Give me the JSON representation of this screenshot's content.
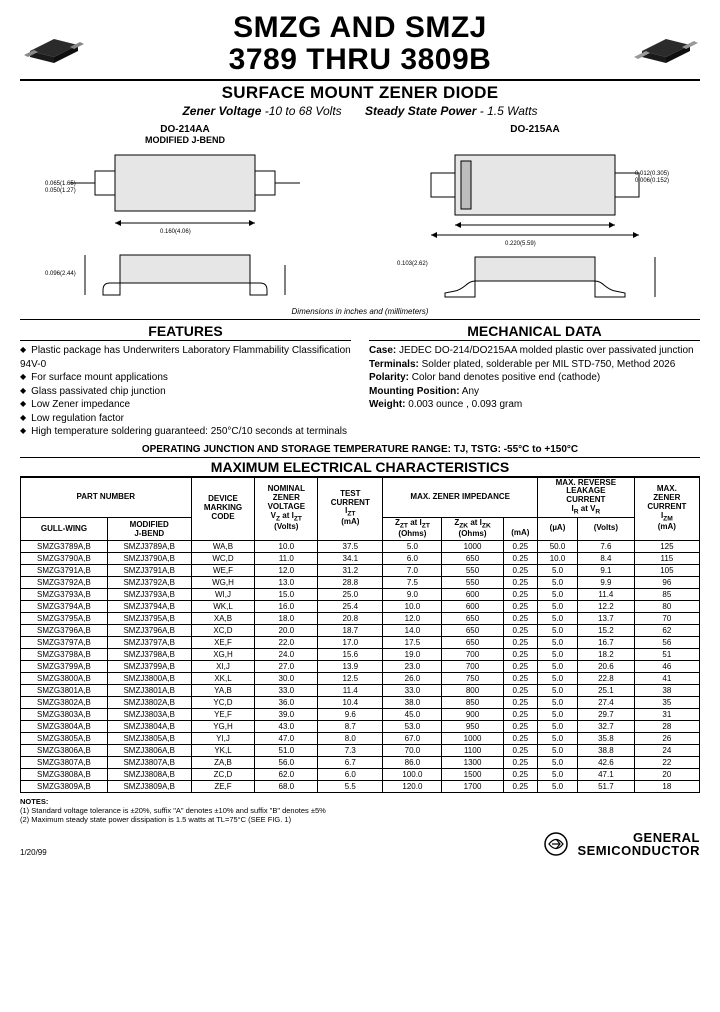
{
  "title_line1": "SMZG AND SMZJ",
  "title_line2": "3789 THRU 3809B",
  "subtitle": "SURFACE MOUNT ZENER DIODE",
  "spec_voltage_label": "Zener Voltage",
  "spec_voltage_value": "-10 to 68 Volts",
  "spec_power_label": "Steady State Power",
  "spec_power_value": "- 1.5 Watts",
  "pkg_left_title": "DO-214AA",
  "pkg_left_sub": "MODIFIED J-BEND",
  "pkg_right_title": "DO-215AA",
  "dim_note": "Dimensions in inches and (millimeters)",
  "features_head": "FEATURES",
  "features": [
    "Plastic package has Underwriters Laboratory Flammability Classification 94V-0",
    "For surface mount applications",
    "Glass passivated chip junction",
    "Low Zener impedance",
    "Low regulation factor",
    "High temperature soldering guaranteed: 250°C/10 seconds at terminals"
  ],
  "mech_head": "MECHANICAL DATA",
  "mech": {
    "case_k": "Case:",
    "case_v": "JEDEC DO-214/DO215AA molded plastic over passivated junction",
    "term_k": "Terminals:",
    "term_v": "Solder plated, solderable per MIL STD-750, Method 2026",
    "pol_k": "Polarity:",
    "pol_v": "Color band denotes positive end (cathode)",
    "mount_k": "Mounting Position:",
    "mount_v": "Any",
    "weight_k": "Weight:",
    "weight_v": "0.003 ounce , 0.093 gram"
  },
  "op_range": "OPERATING JUNCTION AND STORAGE TEMPERATURE RANGE: TJ, TSTG: -55°C to +150°C",
  "maxchar_head": "MAXIMUM ELECTRICAL CHARACTERISTICS",
  "table": {
    "headers": {
      "partnum": "PART NUMBER",
      "gullwing": "GULL-WING",
      "jbend": "MODIFIED J-BEND",
      "marking": "DEVICE MARKING CODE",
      "vz": "NOMINAL ZENER VOLTAGE VZ at IZT (Volts)",
      "izt": "TEST CURRENT IZT (mA)",
      "imp": "MAX. ZENER IMPEDANCE",
      "zzt": "ZZT at IZT (Ohms)",
      "zzk": "ZZK at IZK (Ohms)",
      "izk": "(mA)",
      "leak": "MAX. REVERSE LEAKAGE CURRENT IR at VR",
      "ir": "(µA)",
      "vr": "(Volts)",
      "izm": "MAX. ZENER CURRENT IZM (mA)"
    },
    "rows": [
      [
        "SMZG3789A,B",
        "SMZJ3789A,B",
        "WA,B",
        "10.0",
        "37.5",
        "5.0",
        "1000",
        "0.25",
        "50.0",
        "7.6",
        "125"
      ],
      [
        "SMZG3790A,B",
        "SMZJ3790A,B",
        "WC,D",
        "11.0",
        "34.1",
        "6.0",
        "650",
        "0.25",
        "10.0",
        "8.4",
        "115"
      ],
      [
        "SMZG3791A,B",
        "SMZJ3791A,B",
        "WE,F",
        "12.0",
        "31.2",
        "7.0",
        "550",
        "0.25",
        "5.0",
        "9.1",
        "105"
      ],
      [
        "SMZG3792A,B",
        "SMZJ3792A,B",
        "WG,H",
        "13.0",
        "28.8",
        "7.5",
        "550",
        "0.25",
        "5.0",
        "9.9",
        "96"
      ],
      [
        "SMZG3793A,B",
        "SMZJ3793A,B",
        "WI,J",
        "15.0",
        "25.0",
        "9.0",
        "600",
        "0.25",
        "5.0",
        "11.4",
        "85"
      ],
      [
        "SMZG3794A,B",
        "SMZJ3794A,B",
        "WK,L",
        "16.0",
        "25.4",
        "10.0",
        "600",
        "0.25",
        "5.0",
        "12.2",
        "80"
      ],
      [
        "SMZG3795A,B",
        "SMZJ3795A,B",
        "XA,B",
        "18.0",
        "20.8",
        "12.0",
        "650",
        "0.25",
        "5.0",
        "13.7",
        "70"
      ],
      [
        "SMZG3796A,B",
        "SMZJ3796A,B",
        "XC,D",
        "20.0",
        "18.7",
        "14.0",
        "650",
        "0.25",
        "5.0",
        "15.2",
        "62"
      ],
      [
        "SMZG3797A,B",
        "SMZJ3797A,B",
        "XE,F",
        "22.0",
        "17.0",
        "17.5",
        "650",
        "0.25",
        "5.0",
        "16.7",
        "56"
      ],
      [
        "SMZG3798A,B",
        "SMZJ3798A,B",
        "XG,H",
        "24.0",
        "15.6",
        "19.0",
        "700",
        "0.25",
        "5.0",
        "18.2",
        "51"
      ],
      [
        "SMZG3799A,B",
        "SMZJ3799A,B",
        "XI,J",
        "27.0",
        "13.9",
        "23.0",
        "700",
        "0.25",
        "5.0",
        "20.6",
        "46"
      ],
      [
        "SMZG3800A,B",
        "SMZJ3800A,B",
        "XK,L",
        "30.0",
        "12.5",
        "26.0",
        "750",
        "0.25",
        "5.0",
        "22.8",
        "41"
      ],
      [
        "SMZG3801A,B",
        "SMZJ3801A,B",
        "YA,B",
        "33.0",
        "11.4",
        "33.0",
        "800",
        "0.25",
        "5.0",
        "25.1",
        "38"
      ],
      [
        "SMZG3802A,B",
        "SMZJ3802A,B",
        "YC,D",
        "36.0",
        "10.4",
        "38.0",
        "850",
        "0.25",
        "5.0",
        "27.4",
        "35"
      ],
      [
        "SMZG3803A,B",
        "SMZJ3803A,B",
        "YE,F",
        "39.0",
        "9.6",
        "45.0",
        "900",
        "0.25",
        "5.0",
        "29.7",
        "31"
      ],
      [
        "SMZG3804A,B",
        "SMZJ3804A,B",
        "YG,H",
        "43.0",
        "8.7",
        "53.0",
        "950",
        "0.25",
        "5.0",
        "32.7",
        "28"
      ],
      [
        "SMZG3805A,B",
        "SMZJ3805A,B",
        "YI,J",
        "47.0",
        "8.0",
        "67.0",
        "1000",
        "0.25",
        "5.0",
        "35.8",
        "26"
      ],
      [
        "SMZG3806A,B",
        "SMZJ3806A,B",
        "YK,L",
        "51.0",
        "7.3",
        "70.0",
        "1100",
        "0.25",
        "5.0",
        "38.8",
        "24"
      ],
      [
        "SMZG3807A,B",
        "SMZJ3807A,B",
        "ZA,B",
        "56.0",
        "6.7",
        "86.0",
        "1300",
        "0.25",
        "5.0",
        "42.6",
        "22"
      ],
      [
        "SMZG3808A,B",
        "SMZJ3808A,B",
        "ZC,D",
        "62.0",
        "6.0",
        "100.0",
        "1500",
        "0.25",
        "5.0",
        "47.1",
        "20"
      ],
      [
        "SMZG3809A,B",
        "SMZJ3809A,B",
        "ZE,F",
        "68.0",
        "5.5",
        "120.0",
        "1700",
        "0.25",
        "5.0",
        "51.7",
        "18"
      ]
    ]
  },
  "notes_head": "NOTES:",
  "notes": [
    "(1) Standard voltage tolerance is ±20%, suffix \"A\" denotes ±10% and suffix \"B\" denotes ±5%",
    "(2) Maximum steady state power dissipation is 1.5 watts at TL=75°C (SEE FIG. 1)"
  ],
  "date": "1/20/99",
  "brand1": "GENERAL",
  "brand2": "SEMICONDUCTOR",
  "colors": {
    "line": "#000000",
    "fill": "#d0d0d0",
    "chip": "#333333"
  }
}
